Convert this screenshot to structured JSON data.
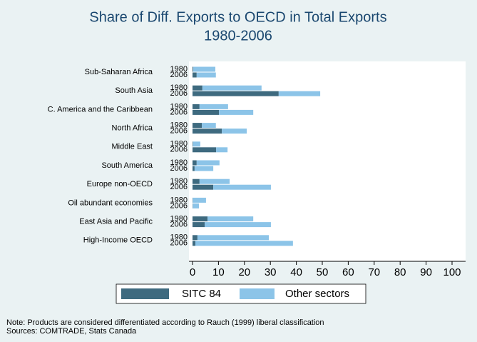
{
  "chart_data": {
    "type": "bar",
    "orientation": "horizontal",
    "stacked": true,
    "title": "Share of Diff. Exports to OECD in Total Exports",
    "subtitle": "1980-2006",
    "categories": [
      "Sub-Saharan Africa",
      "South Asia",
      "C. America and the Caribbean",
      "North Africa",
      "Middle East",
      "South America",
      "Europe non-OECD",
      "Oil abundant economies",
      "East Asia and Pacific",
      "High-Income OECD"
    ],
    "periods": [
      "1980",
      "2006"
    ],
    "series": [
      {
        "name": "SITC 84",
        "color": "#3e6a7f",
        "values": [
          [
            0.3,
            1.6
          ],
          [
            3.8,
            33.2
          ],
          [
            2.7,
            10.2
          ],
          [
            3.6,
            11.3
          ],
          [
            0.2,
            9.1
          ],
          [
            1.6,
            0.8
          ],
          [
            2.7,
            8.0
          ],
          [
            0.1,
            0.1
          ],
          [
            5.8,
            4.7
          ],
          [
            1.9,
            1.1
          ]
        ]
      },
      {
        "name": "Other sectors",
        "color": "#8cc4e8",
        "values": [
          [
            8.5,
            7.4
          ],
          [
            22.8,
            16.0
          ],
          [
            11.0,
            13.2
          ],
          [
            5.4,
            9.6
          ],
          [
            2.8,
            4.4
          ],
          [
            8.8,
            7.2
          ],
          [
            11.6,
            22.2
          ],
          [
            5.1,
            2.4
          ],
          [
            17.6,
            25.5
          ],
          [
            27.5,
            37.6
          ]
        ]
      }
    ],
    "xlim": [
      0,
      100
    ],
    "xticks": [
      0,
      10,
      20,
      30,
      40,
      50,
      60,
      70,
      80,
      90,
      100
    ],
    "notes": [
      "Note: Products are considered differentiated according to Rauch (1999) liberal classification",
      "Sources: COMTRADE, Stats Canada"
    ]
  }
}
